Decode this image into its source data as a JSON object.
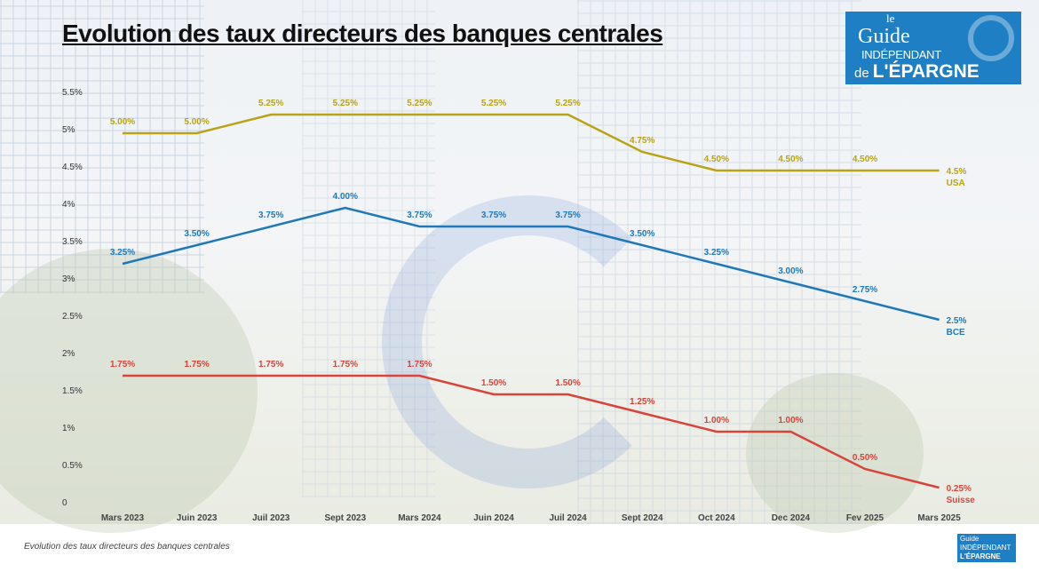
{
  "title": "Evolution des taux directeurs des banques centrales",
  "caption": "Evolution des taux directeurs des banques centrales",
  "logo": {
    "line1": "le",
    "line2": "Guide",
    "line3": "INDÉPENDANT",
    "line4": "de",
    "line5": "L'ÉPARGNE"
  },
  "chart_data": {
    "type": "line",
    "title": "Evolution des taux directeurs des banques centrales",
    "categories": [
      "Mars 2023",
      "Juin 2023",
      "Juil 2023",
      "Sept 2023",
      "Mars 2024",
      "Juin 2024",
      "Juil 2024",
      "Sept 2024",
      "Oct 2024",
      "Dec 2024",
      "Fev 2025",
      "Mars 2025"
    ],
    "ylim": [
      0,
      5.5
    ],
    "yticks": [
      "0",
      "0.5%",
      "1%",
      "1.5%",
      "2%",
      "2.5%",
      "3%",
      "3.5%",
      "4%",
      "4.5%",
      "5%",
      "5.5%"
    ],
    "grid": false,
    "legend": "inline labels at line ends",
    "series": [
      {
        "name": "USA",
        "color": "#b8a314",
        "values": [
          5,
          5,
          5.25,
          5.25,
          5.25,
          5.25,
          5.25,
          4.75,
          4.5,
          4.5,
          4.5,
          4.5
        ],
        "labels": [
          "5.00%",
          "5.00%",
          "5.25%",
          "5.25%",
          "5.25%",
          "5.25%",
          "5.25%",
          "4.75%",
          "4.50%",
          "4.50%",
          "4.50%",
          "4.5%"
        ]
      },
      {
        "name": "BCE",
        "color": "#1f78b8",
        "values": [
          3.25,
          3.5,
          3.75,
          4,
          3.75,
          3.75,
          3.75,
          3.5,
          3.25,
          3,
          2.75,
          2.5
        ],
        "labels": [
          "3.25%",
          "3.50%",
          "3.75%",
          "4.00%",
          "3.75%",
          "3.75%",
          "3.75%",
          "3.50%",
          "3.25%",
          "3.00%",
          "2.75%",
          "2.5%"
        ]
      },
      {
        "name": "Suisse",
        "color": "#d8443a",
        "values": [
          1.75,
          1.75,
          1.75,
          1.75,
          1.75,
          1.5,
          1.5,
          1.25,
          1,
          1,
          0.5,
          0.25
        ],
        "labels": [
          "1.75%",
          "1.75%",
          "1.75%",
          "1.75%",
          "1.75%",
          "1.50%",
          "1.50%",
          "1.25%",
          "1.00%",
          "1.00%",
          "0.50%",
          "0.25%"
        ]
      }
    ]
  }
}
